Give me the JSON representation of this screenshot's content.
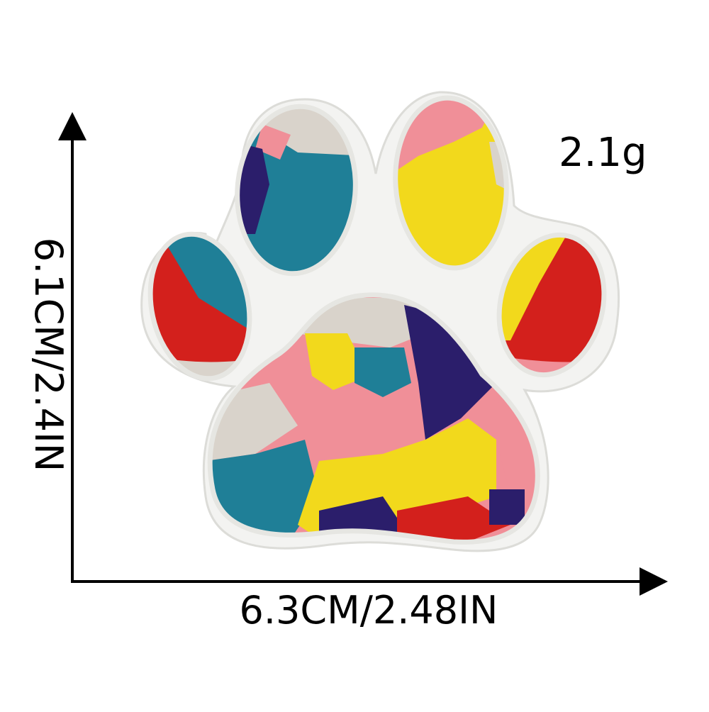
{
  "product": {
    "weight": "2.1g",
    "width": "6.3CM/2.48IN",
    "height": "6.1CM/2.4IN"
  },
  "colors": {
    "teal": "#1f7f97",
    "navy": "#2b1e6b",
    "yellow": "#f2d91c",
    "red": "#d3201c",
    "pink": "#f08f98",
    "beige": "#d9d3cb",
    "border": "#f3f3f1"
  }
}
